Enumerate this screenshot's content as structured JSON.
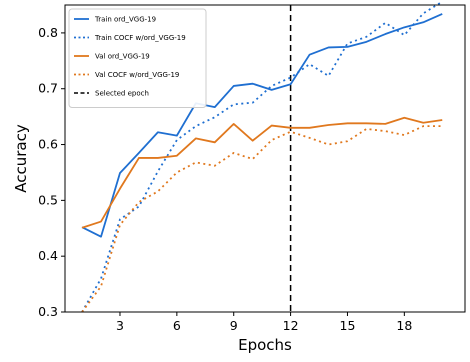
{
  "chart_data": {
    "type": "line",
    "xlabel": "Epochs",
    "ylabel": "Accuracy",
    "xlim": [
      0.1,
      21.2
    ],
    "ylim": [
      0.3,
      0.85
    ],
    "xticks": [
      3,
      6,
      9,
      12,
      15,
      18
    ],
    "yticks": [
      0.3,
      0.4,
      0.5,
      0.6,
      0.7,
      0.8
    ],
    "grid": false,
    "legend_position": "top-left",
    "selected_epoch": 12,
    "x": [
      1,
      2,
      3,
      4,
      5,
      6,
      7,
      8,
      9,
      10,
      11,
      12,
      13,
      14,
      15,
      16,
      17,
      18,
      19,
      20
    ],
    "series": [
      {
        "name": "Train ord_VGG-19",
        "color": "#1f6fd1",
        "line_style": "solid",
        "values": [
          0.452,
          0.435,
          0.549,
          0.585,
          0.622,
          0.616,
          0.674,
          0.667,
          0.705,
          0.709,
          0.698,
          0.708,
          0.761,
          0.774,
          0.775,
          0.784,
          0.798,
          0.81,
          0.819,
          0.834
        ]
      },
      {
        "name": "Train COCF w/ord_VGG-19",
        "color": "#1f6fd1",
        "line_style": "dotted",
        "values": [
          0.3,
          0.36,
          0.466,
          0.489,
          0.552,
          0.608,
          0.633,
          0.649,
          0.672,
          0.675,
          0.705,
          0.72,
          0.744,
          0.723,
          0.781,
          0.793,
          0.818,
          0.796,
          0.835,
          0.856
        ]
      },
      {
        "name": "Val ord_VGG-19",
        "color": "#e0781e",
        "line_style": "solid",
        "values": [
          0.451,
          0.462,
          0.521,
          0.576,
          0.576,
          0.58,
          0.611,
          0.604,
          0.637,
          0.607,
          0.634,
          0.63,
          0.63,
          0.635,
          0.638,
          0.638,
          0.637,
          0.648,
          0.639,
          0.644
        ]
      },
      {
        "name": "Val COCF w/ord_VGG-19",
        "color": "#e0781e",
        "line_style": "dotted",
        "values": [
          0.3,
          0.346,
          0.456,
          0.497,
          0.516,
          0.55,
          0.568,
          0.562,
          0.585,
          0.574,
          0.608,
          0.623,
          0.612,
          0.6,
          0.606,
          0.628,
          0.624,
          0.617,
          0.633,
          0.633
        ]
      }
    ],
    "legend": [
      {
        "label": "Train ord_VGG-19",
        "color": "#1f6fd1",
        "line_style": "solid"
      },
      {
        "label": "Train COCF w/ord_VGG-19",
        "color": "#1f6fd1",
        "line_style": "dotted"
      },
      {
        "label": "Val ord_VGG-19",
        "color": "#e0781e",
        "line_style": "solid"
      },
      {
        "label": "Val COCF w/ord_VGG-19",
        "color": "#e0781e",
        "line_style": "dotted"
      },
      {
        "label": "Selected epoch",
        "color": "#000000",
        "line_style": "dashed"
      }
    ]
  }
}
